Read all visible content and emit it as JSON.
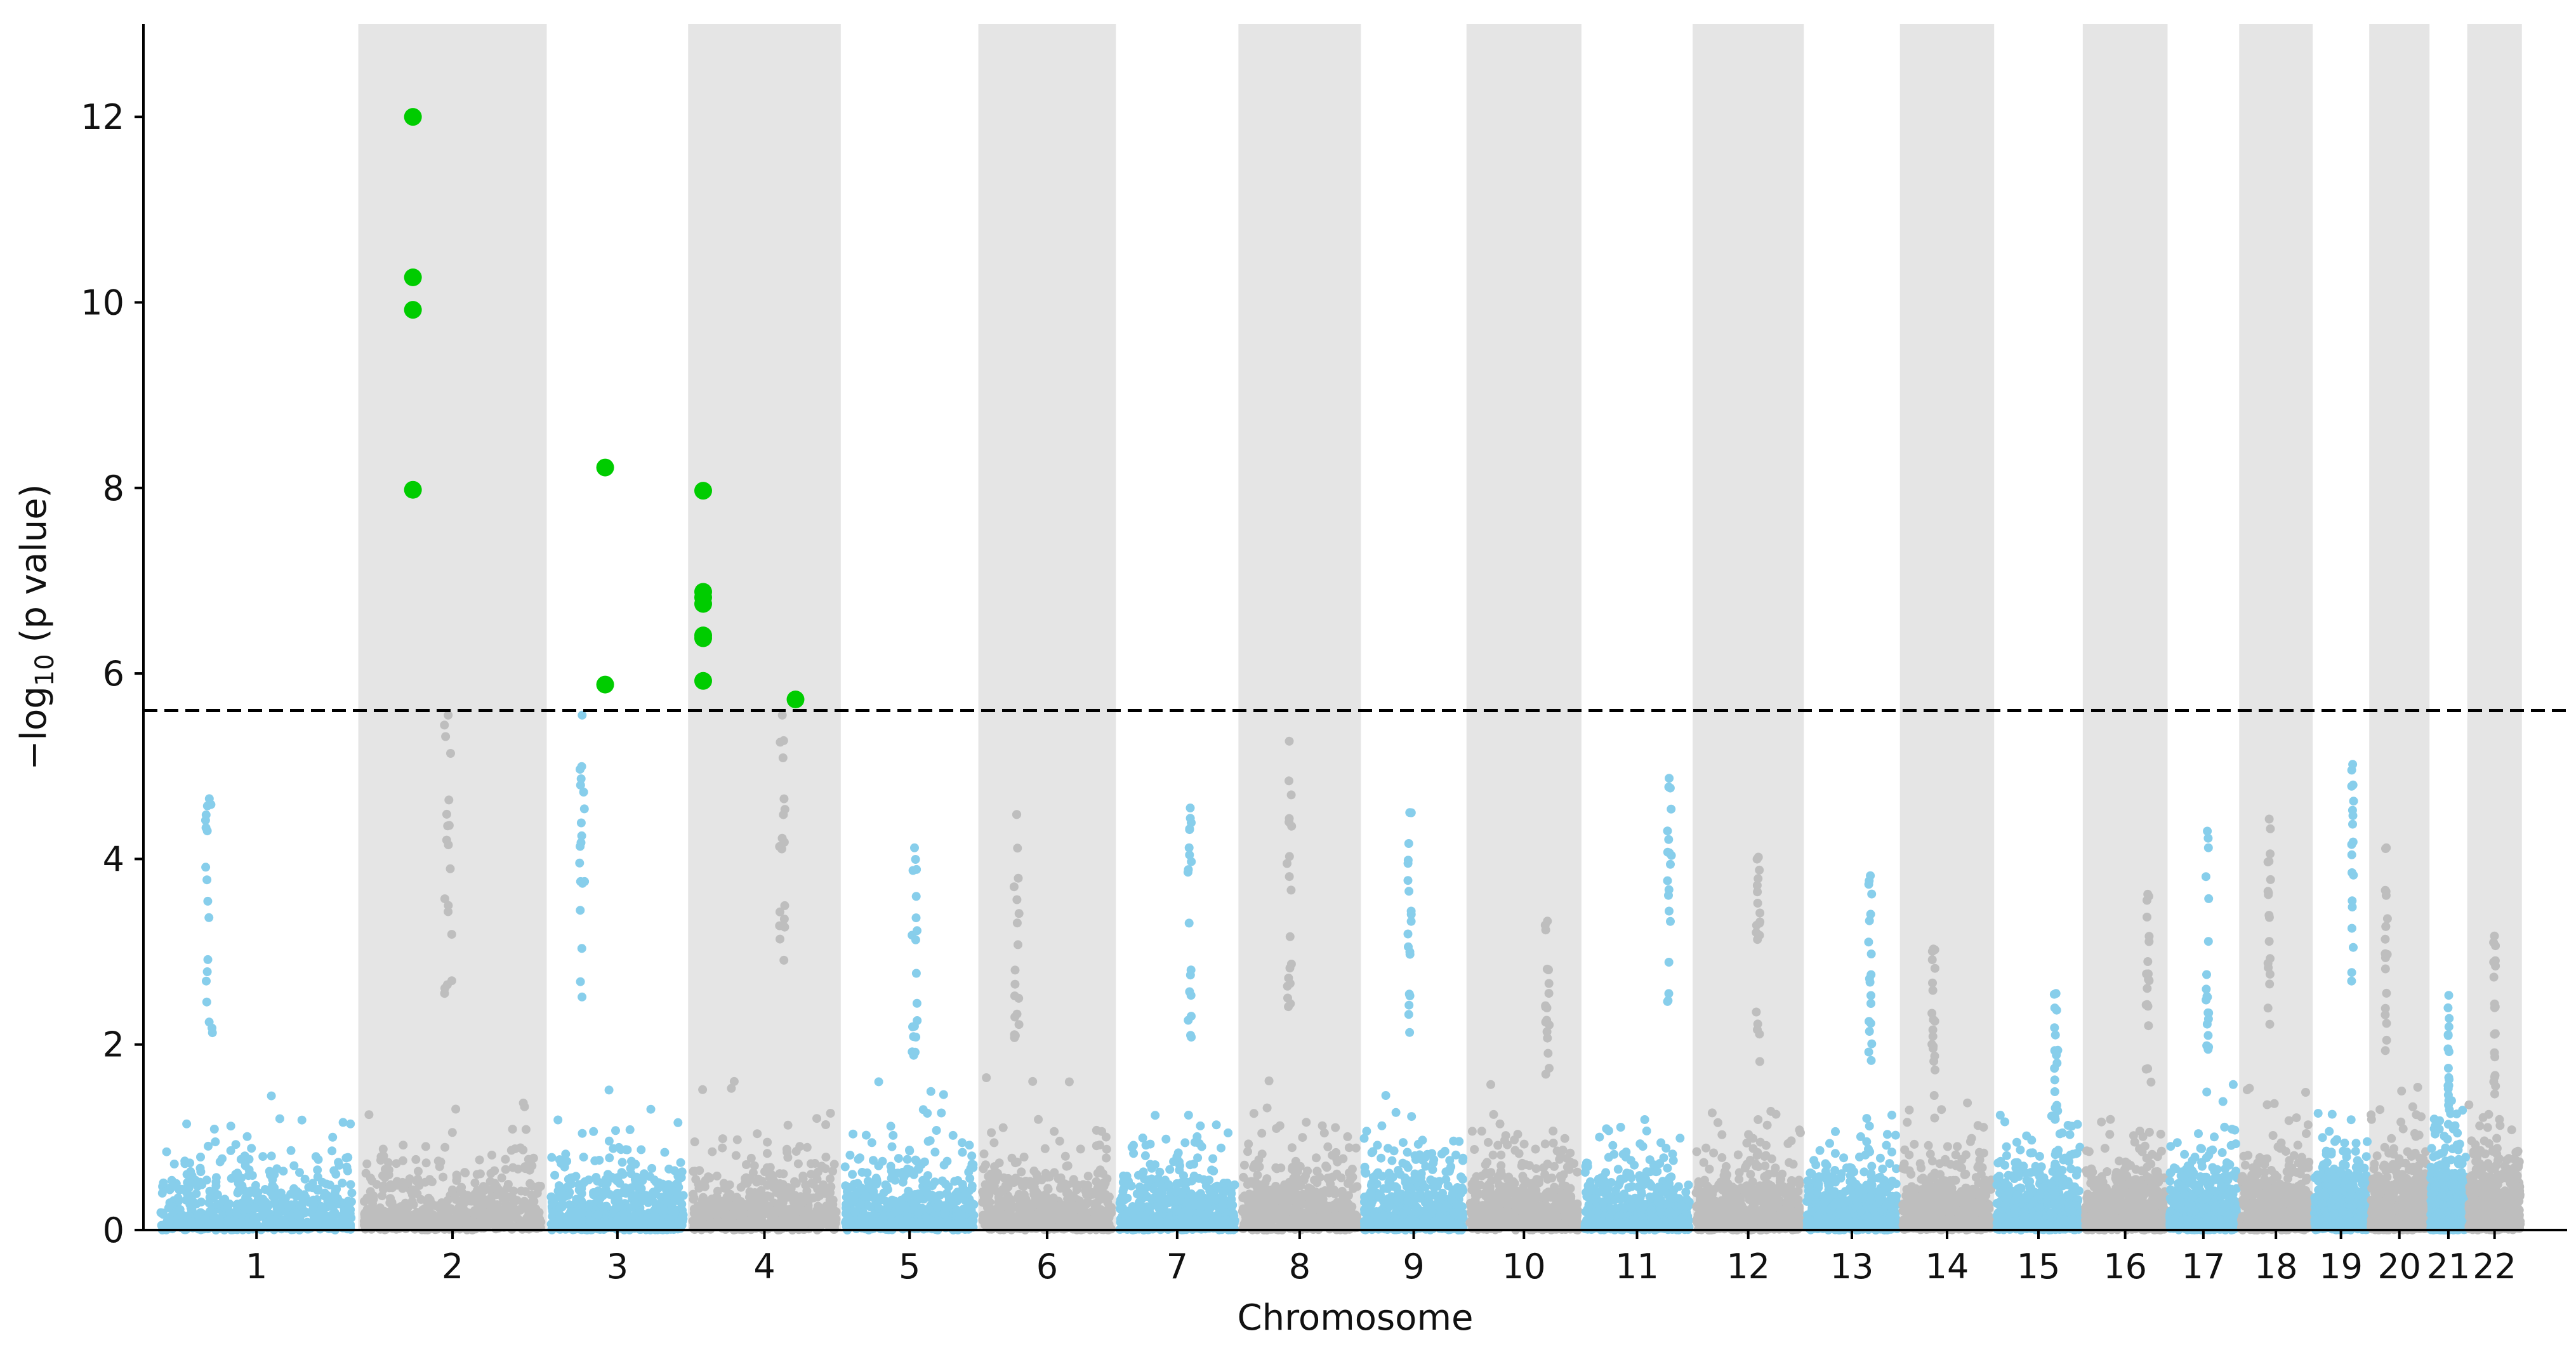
{
  "chart_data": {
    "type": "scatter",
    "subtype": "manhattan",
    "title": "",
    "xlabel": "Chromosome",
    "ylabel_prefix": "−log",
    "ylabel_sub": "10",
    "ylabel_suffix": " (p value)",
    "ylim": [
      0,
      13
    ],
    "yticks": [
      0,
      2,
      4,
      6,
      8,
      10,
      12
    ],
    "significance_threshold": 5.6,
    "colors": {
      "odd_chromosome_points": "#87ceeb",
      "even_chromosome_points": "#bebebe",
      "significant_points": "#00cc00",
      "even_band": "#e5e5e5",
      "threshold_line": "#000000"
    },
    "chromosomes": [
      {
        "label": "1",
        "start": 0,
        "end": 1080,
        "max_p": 4.65
      },
      {
        "label": "2",
        "start": 1080,
        "end": 2080,
        "max_p": 12.0
      },
      {
        "label": "3",
        "start": 2080,
        "end": 2830,
        "max_p": 8.22
      },
      {
        "label": "4",
        "start": 2830,
        "end": 3640,
        "max_p": 7.97
      },
      {
        "label": "5",
        "start": 3640,
        "end": 4370,
        "max_p": 4.12
      },
      {
        "label": "6",
        "start": 4370,
        "end": 5100,
        "max_p": 4.48
      },
      {
        "label": "7",
        "start": 5100,
        "end": 5750,
        "max_p": 4.55
      },
      {
        "label": "8",
        "start": 5750,
        "end": 6400,
        "max_p": 5.27
      },
      {
        "label": "9",
        "start": 6400,
        "end": 6960,
        "max_p": 4.5
      },
      {
        "label": "10",
        "start": 6960,
        "end": 7570,
        "max_p": 3.33
      },
      {
        "label": "11",
        "start": 7570,
        "end": 8160,
        "max_p": 4.87
      },
      {
        "label": "12",
        "start": 8160,
        "end": 8750,
        "max_p": 4.02
      },
      {
        "label": "13",
        "start": 8750,
        "end": 9260,
        "max_p": 3.82
      },
      {
        "label": "14",
        "start": 9260,
        "end": 9760,
        "max_p": 3.03
      },
      {
        "label": "15",
        "start": 9760,
        "end": 10230,
        "max_p": 2.55
      },
      {
        "label": "16",
        "start": 10230,
        "end": 10680,
        "max_p": 3.62
      },
      {
        "label": "17",
        "start": 10680,
        "end": 11060,
        "max_p": 4.3
      },
      {
        "label": "18",
        "start": 11060,
        "end": 11450,
        "max_p": 4.43
      },
      {
        "label": "19",
        "start": 11450,
        "end": 11750,
        "max_p": 5.02
      },
      {
        "label": "20",
        "start": 11750,
        "end": 12070,
        "max_p": 4.12
      },
      {
        "label": "21",
        "start": 12070,
        "end": 12270,
        "max_p": 2.53
      },
      {
        "label": "22",
        "start": 12270,
        "end": 12560,
        "max_p": 3.17
      }
    ],
    "xlim": [
      -60,
      12800
    ],
    "significant_hits": [
      {
        "chromosome": "2",
        "position": 1370,
        "p": 12.0
      },
      {
        "chromosome": "2",
        "position": 1370,
        "p": 10.27
      },
      {
        "chromosome": "2",
        "position": 1370,
        "p": 9.92
      },
      {
        "chromosome": "2",
        "position": 1370,
        "p": 7.98
      },
      {
        "chromosome": "3",
        "position": 2390,
        "p": 8.22
      },
      {
        "chromosome": "3",
        "position": 2390,
        "p": 5.88
      },
      {
        "chromosome": "4",
        "position": 2910,
        "p": 7.97
      },
      {
        "chromosome": "4",
        "position": 2910,
        "p": 6.88
      },
      {
        "chromosome": "4",
        "position": 2910,
        "p": 6.82
      },
      {
        "chromosome": "4",
        "position": 2910,
        "p": 6.75
      },
      {
        "chromosome": "4",
        "position": 2910,
        "p": 6.41
      },
      {
        "chromosome": "4",
        "position": 2910,
        "p": 6.38
      },
      {
        "chromosome": "4",
        "position": 2910,
        "p": 5.92
      },
      {
        "chromosome": "4",
        "position": 3400,
        "p": 5.72
      }
    ],
    "background_points_per_chromosome": 600
  }
}
